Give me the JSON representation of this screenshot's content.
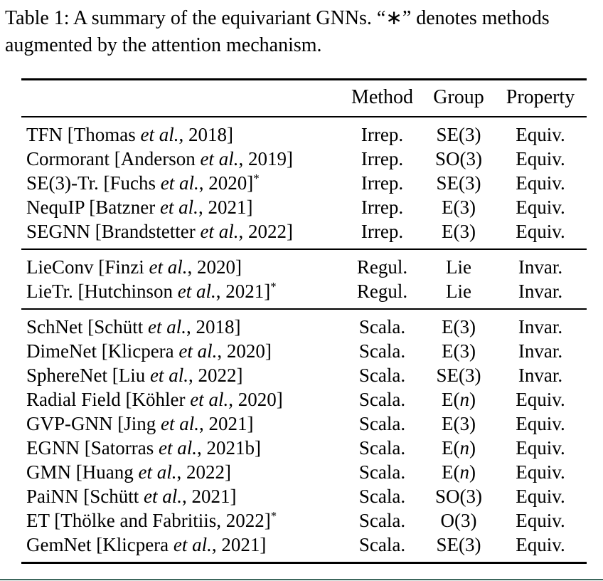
{
  "caption": {
    "line1": "Table 1: A summary of the equivariant GNNs. “∗” denotes methods",
    "line2": "augmented by the attention mechanism."
  },
  "table": {
    "headers": {
      "name": "",
      "method": "Method",
      "group": "Group",
      "property": "Property"
    },
    "sections": [
      {
        "rows": [
          {
            "name_pre": "TFN [Thomas ",
            "name_it": "et al.",
            "name_post": ", 2018]",
            "name_sup": "",
            "method": "Irrep.",
            "group_pre": "SE(3)",
            "group_it": "",
            "group_post": "",
            "property": "Equiv."
          },
          {
            "name_pre": "Cormorant [Anderson ",
            "name_it": "et al.",
            "name_post": ", 2019]",
            "name_sup": "",
            "method": "Irrep.",
            "group_pre": "SO(3)",
            "group_it": "",
            "group_post": "",
            "property": "Equiv."
          },
          {
            "name_pre": "SE(3)-Tr. [Fuchs ",
            "name_it": "et al.",
            "name_post": ", 2020]",
            "name_sup": "*",
            "method": "Irrep.",
            "group_pre": "SE(3)",
            "group_it": "",
            "group_post": "",
            "property": "Equiv."
          },
          {
            "name_pre": "NequIP [Batzner ",
            "name_it": "et al.",
            "name_post": ", 2021]",
            "name_sup": "",
            "method": "Irrep.",
            "group_pre": "E(3)",
            "group_it": "",
            "group_post": "",
            "property": "Equiv."
          },
          {
            "name_pre": "SEGNN [Brandstetter ",
            "name_it": "et al.",
            "name_post": ", 2022]",
            "name_sup": "",
            "method": "Irrep.",
            "group_pre": "E(3)",
            "group_it": "",
            "group_post": "",
            "property": "Equiv."
          }
        ]
      },
      {
        "rows": [
          {
            "name_pre": "LieConv [Finzi ",
            "name_it": "et al.",
            "name_post": ", 2020]",
            "name_sup": "",
            "method": "Regul.",
            "group_pre": "Lie",
            "group_it": "",
            "group_post": "",
            "property": "Invar."
          },
          {
            "name_pre": "LieTr. [Hutchinson ",
            "name_it": "et al.",
            "name_post": ", 2021]",
            "name_sup": "*",
            "method": "Regul.",
            "group_pre": "Lie",
            "group_it": "",
            "group_post": "",
            "property": "Invar."
          }
        ]
      },
      {
        "rows": [
          {
            "name_pre": "SchNet [Schütt ",
            "name_it": "et al.",
            "name_post": ", 2018]",
            "name_sup": "",
            "method": "Scala.",
            "group_pre": "E(3)",
            "group_it": "",
            "group_post": "",
            "property": "Invar."
          },
          {
            "name_pre": "DimeNet [Klicpera ",
            "name_it": "et al.",
            "name_post": ", 2020]",
            "name_sup": "",
            "method": "Scala.",
            "group_pre": "E(3)",
            "group_it": "",
            "group_post": "",
            "property": "Invar."
          },
          {
            "name_pre": "SphereNet [Liu ",
            "name_it": "et al.",
            "name_post": ", 2022]",
            "name_sup": "",
            "method": "Scala.",
            "group_pre": "SE(3)",
            "group_it": "",
            "group_post": "",
            "property": "Invar."
          },
          {
            "name_pre": "Radial Field [Köhler ",
            "name_it": "et al.",
            "name_post": ", 2020]",
            "name_sup": "",
            "method": "Scala.",
            "group_pre": "E(",
            "group_it": "n",
            "group_post": ")",
            "property": "Equiv."
          },
          {
            "name_pre": "GVP-GNN [Jing ",
            "name_it": "et al.",
            "name_post": ", 2021]",
            "name_sup": "",
            "method": "Scala.",
            "group_pre": "E(3)",
            "group_it": "",
            "group_post": "",
            "property": "Equiv."
          },
          {
            "name_pre": "EGNN [Satorras ",
            "name_it": "et al.",
            "name_post": ", 2021b]",
            "name_sup": "",
            "method": "Scala.",
            "group_pre": "E(",
            "group_it": "n",
            "group_post": ")",
            "property": "Equiv."
          },
          {
            "name_pre": "GMN [Huang ",
            "name_it": "et al.",
            "name_post": ", 2022]",
            "name_sup": "",
            "method": "Scala.",
            "group_pre": "E(",
            "group_it": "n",
            "group_post": ")",
            "property": "Equiv."
          },
          {
            "name_pre": "PaiNN [Schütt ",
            "name_it": "et al.",
            "name_post": ", 2021]",
            "name_sup": "",
            "method": "Scala.",
            "group_pre": "SO(3)",
            "group_it": "",
            "group_post": "",
            "property": "Equiv."
          },
          {
            "name_pre": "ET [Thölke and Fabritiis, 2022]",
            "name_it": "",
            "name_post": "",
            "name_sup": "*",
            "method": "Scala.",
            "group_pre": "O(3)",
            "group_it": "",
            "group_post": "",
            "property": "Equiv."
          },
          {
            "name_pre": "GemNet [Klicpera ",
            "name_it": "et al.",
            "name_post": ", 2021]",
            "name_sup": "",
            "method": "Scala.",
            "group_pre": "SE(3)",
            "group_it": "",
            "group_post": "",
            "property": "Equiv."
          }
        ]
      }
    ]
  },
  "colors": {
    "rule": "#000000",
    "bottom_accent": "#3c665c"
  }
}
